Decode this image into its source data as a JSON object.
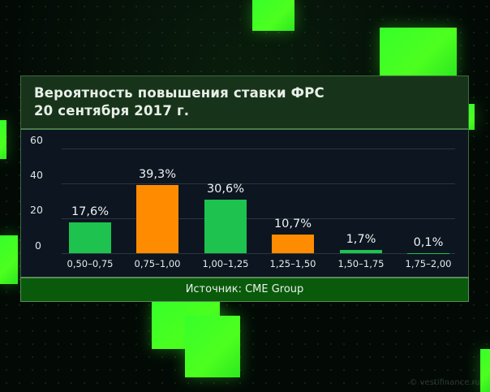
{
  "title": {
    "line1": "Вероятность повышения ставки ФРС",
    "line2": "20 сентября 2017 г."
  },
  "source": "Источник: CME Group",
  "watermark": "© vestifinance.ru",
  "colors": {
    "green_bar": "#1dc34e",
    "orange_bar": "#ff8c00",
    "panel_title_bg": "#17341a",
    "chart_bg": "#0c1520",
    "source_bg": "#0a5a0c",
    "accent_cube": "#3dff24"
  },
  "chart_data": {
    "type": "bar",
    "title": "Вероятность повышения ставки ФРС 20 сентября 2017 г.",
    "xlabel": "",
    "ylabel": "",
    "ylim": [
      0,
      60
    ],
    "yticks": [
      "60",
      "40",
      "20",
      "0"
    ],
    "grid": true,
    "categories": [
      "0,50–0,75",
      "0,75–1,00",
      "1,00–1,25",
      "1,25–1,50",
      "1,50–1,75",
      "1,75–2,00"
    ],
    "values": [
      17.6,
      39.3,
      30.6,
      10.7,
      1.7,
      0.1
    ],
    "labels": [
      "17,6%",
      "39,3%",
      "30,6%",
      "10,7%",
      "1,7%",
      "0,1%"
    ],
    "bar_colors": [
      "#1dc34e",
      "#ff8c00",
      "#1dc34e",
      "#ff8c00",
      "#1dc34e",
      "#1dc34e"
    ],
    "source": "Источник: CME Group"
  }
}
